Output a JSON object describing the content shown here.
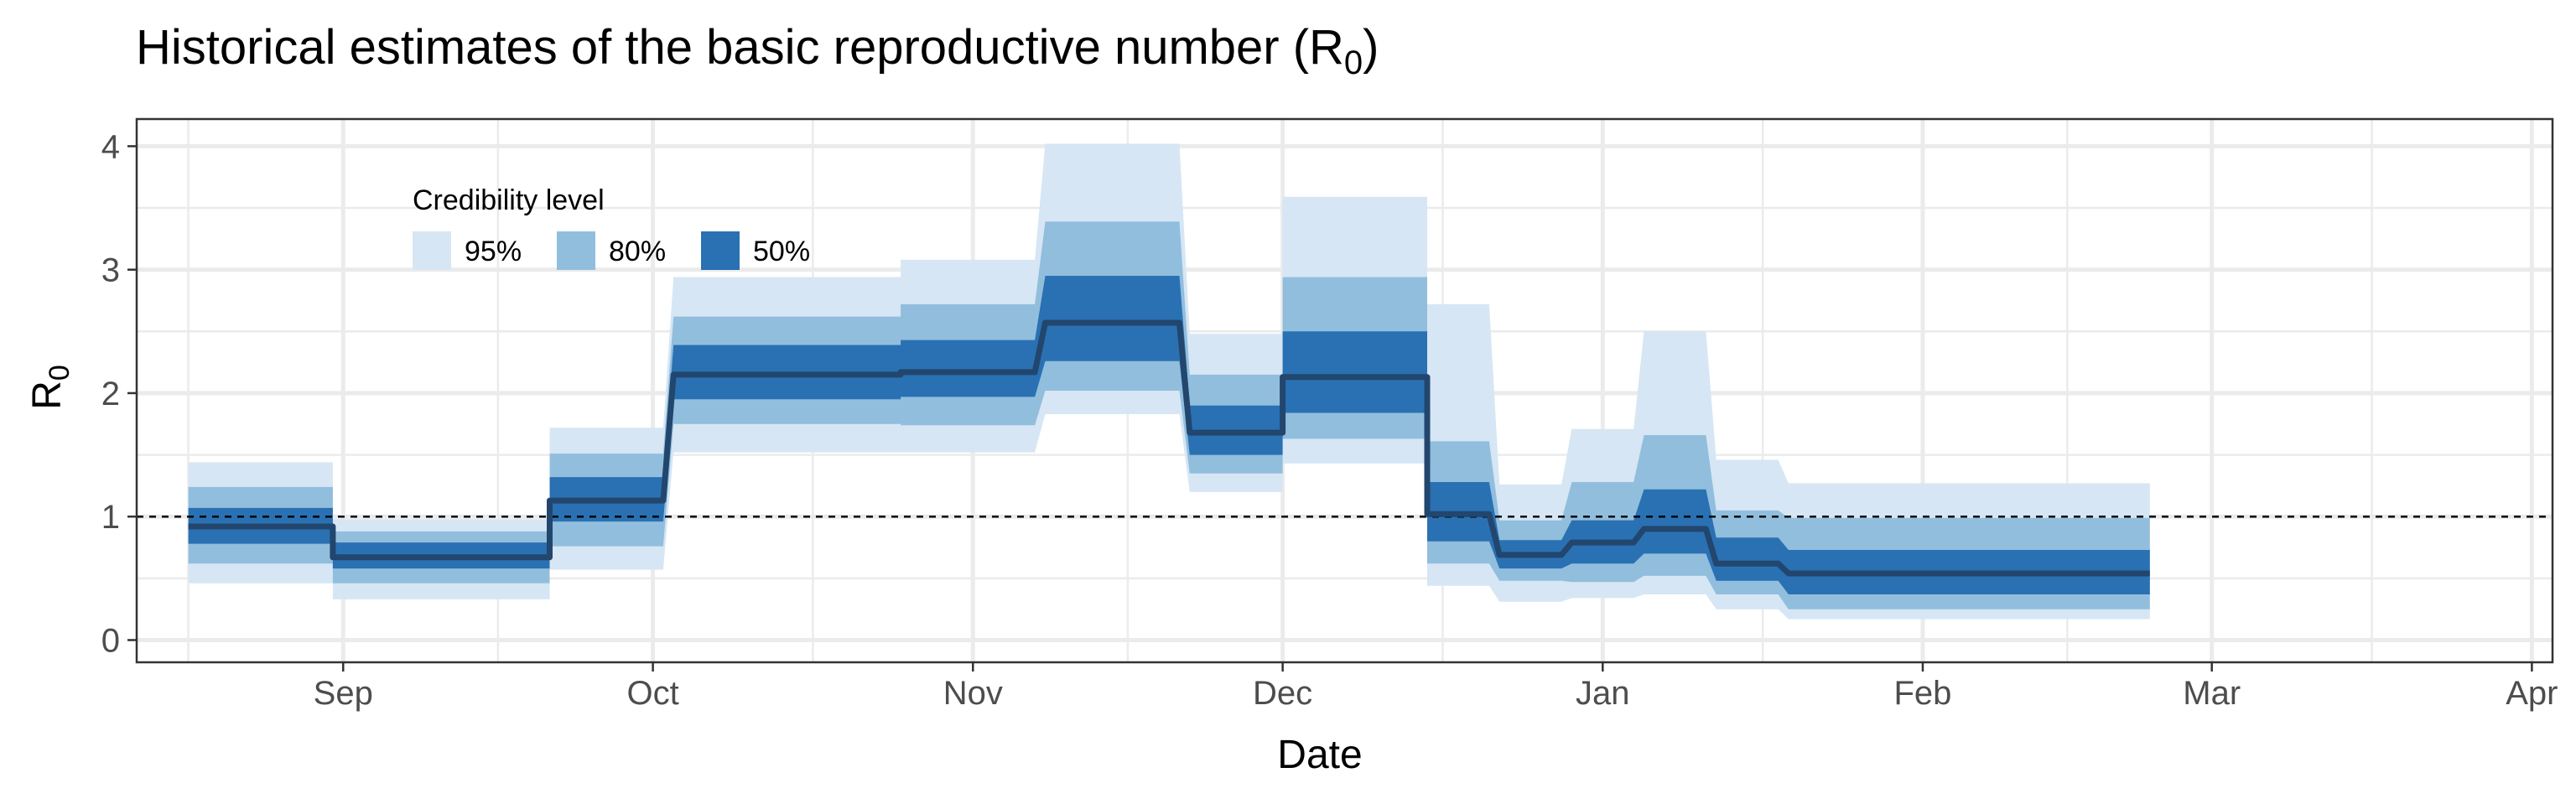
{
  "chart_data": {
    "type": "area",
    "title": "Historical estimates of the basic reproductive number (R",
    "title_subscript": "0",
    "title_suffix": ")",
    "xlabel": "Date",
    "ylabel": "R",
    "ylabel_subscript": "0",
    "xlim": [
      "2020-08-12",
      "2021-04-03"
    ],
    "ylim": [
      -0.18,
      4.22
    ],
    "x_ticks": [
      {
        "date": "2020-09-01",
        "label": "Sep"
      },
      {
        "date": "2020-10-01",
        "label": "Oct"
      },
      {
        "date": "2020-11-01",
        "label": "Nov"
      },
      {
        "date": "2020-12-01",
        "label": "Dec"
      },
      {
        "date": "2021-01-01",
        "label": "Jan"
      },
      {
        "date": "2021-02-01",
        "label": "Feb"
      },
      {
        "date": "2021-03-01",
        "label": "Mar"
      },
      {
        "date": "2021-04-01",
        "label": "Apr"
      }
    ],
    "y_ticks": [
      0,
      1,
      2,
      3,
      4
    ],
    "reference_line": {
      "y": 1,
      "style": "dashed",
      "color": "#000000"
    },
    "grid": true,
    "legend": {
      "title": "Credibility level",
      "placement": "top-left",
      "entries": [
        {
          "label": "95%",
          "color": "#d6e6f4"
        },
        {
          "label": "80%",
          "color": "#92bedd"
        },
        {
          "label": "50%",
          "color": "#2a71b3"
        }
      ]
    },
    "colors": {
      "band95": "#d6e6f4",
      "band80": "#92bedd",
      "band50": "#2a71b3",
      "median": "#22466d",
      "grid": "#ebebeb",
      "panel_border": "#333333"
    },
    "segments": [
      {
        "start": "2020-08-17",
        "end": "2020-08-30",
        "median": 0.92,
        "lo50": 0.78,
        "hi50": 1.07,
        "lo80": 0.62,
        "hi80": 1.24,
        "lo95": 0.46,
        "hi95": 1.44
      },
      {
        "start": "2020-08-31",
        "end": "2020-09-20",
        "median": 0.67,
        "lo50": 0.58,
        "hi50": 0.79,
        "lo80": 0.46,
        "hi80": 0.88,
        "lo95": 0.33,
        "hi95": 0.98
      },
      {
        "start": "2020-09-21",
        "end": "2020-10-01",
        "median": 1.13,
        "lo50": 0.96,
        "hi50": 1.32,
        "lo80": 0.76,
        "hi80": 1.51,
        "lo95": 0.57,
        "hi95": 1.72
      },
      {
        "start": "2020-10-03",
        "end": "2020-10-24",
        "median": 2.15,
        "lo50": 1.95,
        "hi50": 2.39,
        "lo80": 1.75,
        "hi80": 2.62,
        "lo95": 1.52,
        "hi95": 2.94
      },
      {
        "start": "2020-10-25",
        "end": "2020-11-06",
        "median": 2.17,
        "lo50": 1.97,
        "hi50": 2.43,
        "lo80": 1.74,
        "hi80": 2.72,
        "lo95": 1.52,
        "hi95": 3.08
      },
      {
        "start": "2020-11-08",
        "end": "2020-11-20",
        "median": 2.57,
        "lo50": 2.26,
        "hi50": 2.95,
        "lo80": 2.02,
        "hi80": 3.39,
        "lo95": 1.83,
        "hi95": 4.02
      },
      {
        "start": "2020-11-22",
        "end": "2020-11-30",
        "median": 1.68,
        "lo50": 1.5,
        "hi50": 1.9,
        "lo80": 1.35,
        "hi80": 2.15,
        "lo95": 1.2,
        "hi95": 2.48
      },
      {
        "start": "2020-12-01",
        "end": "2020-12-14",
        "median": 2.13,
        "lo50": 1.84,
        "hi50": 2.5,
        "lo80": 1.63,
        "hi80": 2.94,
        "lo95": 1.43,
        "hi95": 3.59
      },
      {
        "start": "2020-12-15",
        "end": "2020-12-20",
        "median": 1.02,
        "lo50": 0.8,
        "hi50": 1.28,
        "lo80": 0.62,
        "hi80": 1.61,
        "lo95": 0.44,
        "hi95": 2.72
      },
      {
        "start": "2020-12-22",
        "end": "2020-12-27",
        "median": 0.69,
        "lo50": 0.58,
        "hi50": 0.81,
        "lo80": 0.48,
        "hi80": 0.97,
        "lo95": 0.31,
        "hi95": 1.26
      },
      {
        "start": "2020-12-29",
        "end": "2021-01-03",
        "median": 0.79,
        "lo50": 0.62,
        "hi50": 0.97,
        "lo80": 0.47,
        "hi80": 1.28,
        "lo95": 0.34,
        "hi95": 1.71
      },
      {
        "start": "2021-01-05",
        "end": "2021-01-10",
        "median": 0.9,
        "lo50": 0.7,
        "hi50": 1.22,
        "lo80": 0.52,
        "hi80": 1.66,
        "lo95": 0.37,
        "hi95": 2.5
      },
      {
        "start": "2021-01-12",
        "end": "2021-01-17",
        "median": 0.62,
        "lo50": 0.48,
        "hi50": 0.83,
        "lo80": 0.37,
        "hi80": 1.05,
        "lo95": 0.25,
        "hi95": 1.46
      },
      {
        "start": "2021-01-19",
        "end": "2021-02-22",
        "median": 0.54,
        "lo50": 0.37,
        "hi50": 0.73,
        "lo80": 0.25,
        "hi80": 0.99,
        "lo95": 0.17,
        "hi95": 1.27
      }
    ]
  }
}
